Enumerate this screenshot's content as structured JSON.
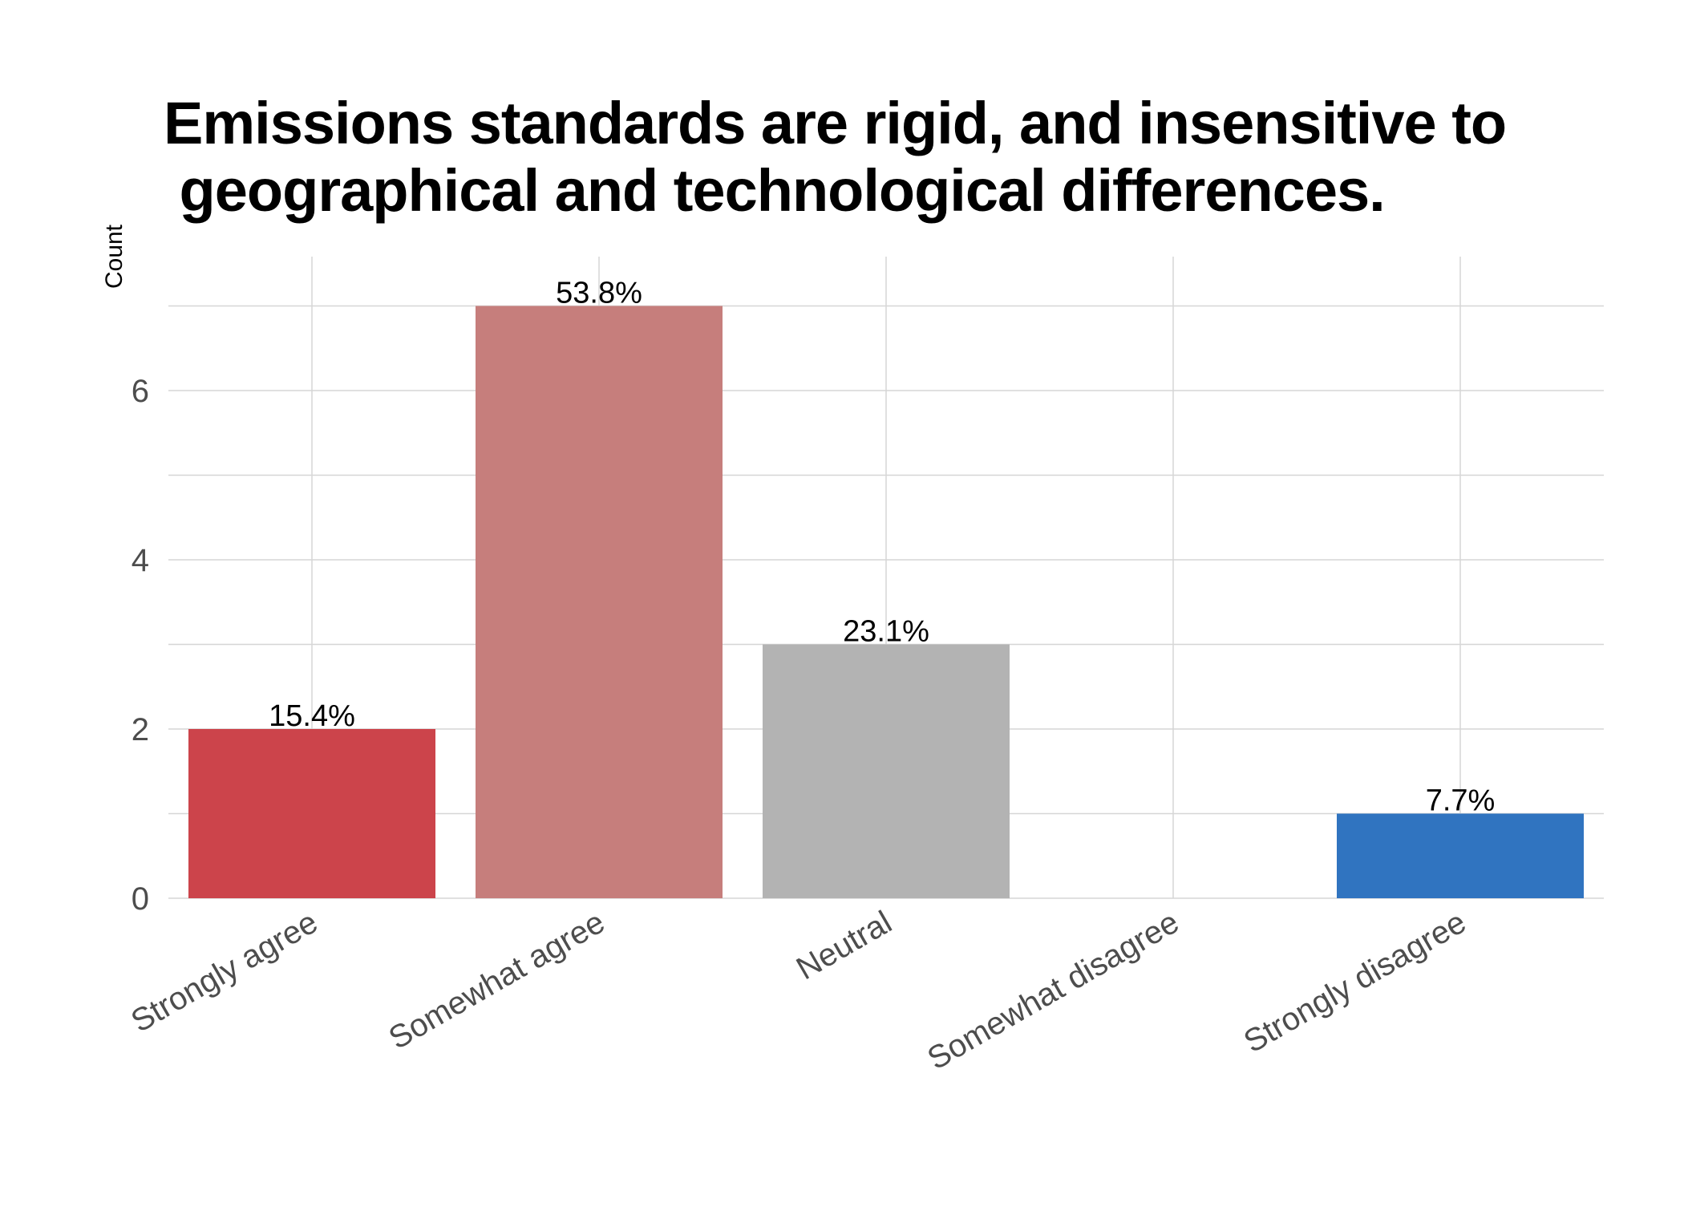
{
  "chart_data": {
    "type": "bar",
    "title": "Emissions standards are rigid, and insensitive to\n geographical and technological differences.",
    "xlabel": "",
    "ylabel": "Count",
    "categories": [
      "Strongly agree",
      "Somewhat agree",
      "Neutral",
      "Somewhat disagree",
      "Strongly disagree"
    ],
    "values": [
      2,
      7,
      3,
      0,
      1
    ],
    "labels": [
      "15.4%",
      "53.8%",
      "23.1%",
      "",
      "7.7%"
    ],
    "colors": [
      "#CC444B",
      "#C67E7C",
      "#B3B3B3",
      "#9DB4D6",
      "#3074C0"
    ],
    "yticks": [
      0,
      2,
      4,
      6
    ],
    "ylim": [
      0,
      7.5
    ],
    "grid": true,
    "legend": "none"
  }
}
